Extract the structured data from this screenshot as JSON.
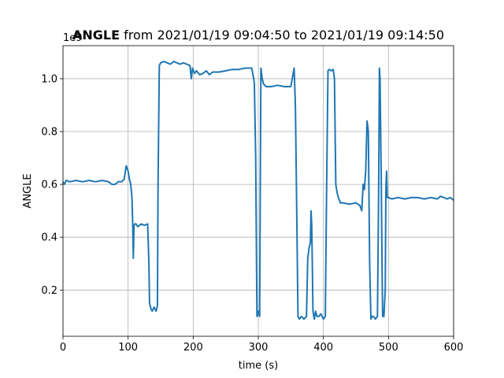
{
  "chart_data": {
    "type": "line",
    "title_bold": "ANGLE",
    "title_rest": " from 2021/01/19 09:04:50 to 2021/01/19 09:14:50",
    "xlabel": "time (s)",
    "ylabel": "ANGLE",
    "offset_label": "1e9",
    "xlim": [
      0,
      600
    ],
    "ylim": [
      0.025,
      1.125
    ],
    "x_ticks": [
      0,
      100,
      200,
      300,
      400,
      500,
      600
    ],
    "x_tick_labels": [
      "0",
      "100",
      "200",
      "300",
      "400",
      "500",
      "600"
    ],
    "y_ticks": [
      0.2,
      0.4,
      0.6,
      0.8,
      1.0
    ],
    "y_tick_labels": [
      "0.2",
      "0.4",
      "0.6",
      "0.8",
      "1.0"
    ],
    "grid": true,
    "line_color": "#1f77b4",
    "series": [
      {
        "x": [
          0,
          2,
          5,
          10,
          20,
          30,
          40,
          50,
          60,
          70,
          75,
          80,
          85,
          90,
          94,
          97,
          100,
          102,
          104,
          106,
          107,
          108,
          109,
          110,
          112,
          115,
          120,
          125,
          130,
          132,
          133,
          135,
          137,
          140,
          143,
          145,
          146,
          148,
          150,
          155,
          160,
          165,
          170,
          175,
          180,
          185,
          190,
          195,
          197,
          199,
          202,
          205,
          210,
          215,
          220,
          225,
          230,
          240,
          250,
          260,
          270,
          280,
          290,
          293,
          294,
          296,
          298,
          300,
          302,
          304,
          306,
          308,
          312,
          320,
          330,
          340,
          350,
          355,
          357,
          359,
          361,
          363,
          366,
          370,
          374,
          376,
          378,
          380,
          381,
          382,
          383,
          384,
          386,
          388,
          390,
          393,
          396,
          400,
          403,
          405,
          407,
          409,
          412,
          415,
          417,
          419,
          421,
          423,
          426,
          430,
          440,
          450,
          456,
          459,
          461,
          463,
          465,
          467,
          469,
          471,
          473,
          475,
          477,
          480,
          483,
          485,
          486,
          487,
          489,
          490,
          491,
          493,
          495,
          496,
          497,
          498,
          500,
          505,
          515,
          525,
          535,
          545,
          555,
          565,
          575,
          580,
          585,
          590,
          595,
          600
        ],
        "y": [
          0.61,
          0.6,
          0.615,
          0.61,
          0.615,
          0.61,
          0.615,
          0.61,
          0.615,
          0.61,
          0.6,
          0.6,
          0.61,
          0.61,
          0.62,
          0.67,
          0.65,
          0.62,
          0.6,
          0.55,
          0.45,
          0.32,
          0.44,
          0.45,
          0.45,
          0.44,
          0.45,
          0.445,
          0.45,
          0.3,
          0.15,
          0.13,
          0.12,
          0.135,
          0.12,
          0.14,
          0.6,
          1.05,
          1.06,
          1.065,
          1.06,
          1.055,
          1.065,
          1.06,
          1.055,
          1.06,
          1.055,
          1.05,
          1.0,
          1.04,
          1.02,
          1.03,
          1.015,
          1.02,
          1.03,
          1.015,
          1.025,
          1.025,
          1.03,
          1.035,
          1.035,
          1.04,
          1.04,
          1.0,
          0.98,
          0.7,
          0.1,
          0.12,
          0.1,
          1.04,
          1.0,
          0.98,
          0.97,
          0.97,
          0.975,
          0.97,
          0.97,
          1.04,
          0.9,
          0.5,
          0.1,
          0.09,
          0.1,
          0.09,
          0.1,
          0.32,
          0.36,
          0.38,
          0.5,
          0.45,
          0.3,
          0.12,
          0.09,
          0.12,
          0.1,
          0.1,
          0.11,
          0.09,
          0.1,
          0.6,
          1.03,
          1.035,
          1.03,
          1.035,
          1.0,
          0.6,
          0.57,
          0.55,
          0.53,
          0.53,
          0.525,
          0.53,
          0.52,
          0.5,
          0.6,
          0.58,
          0.65,
          0.84,
          0.8,
          0.3,
          0.09,
          0.1,
          0.1,
          0.09,
          0.1,
          0.6,
          1.04,
          1.0,
          0.6,
          0.3,
          0.1,
          0.1,
          0.2,
          0.58,
          0.65,
          0.55,
          0.55,
          0.545,
          0.55,
          0.545,
          0.55,
          0.55,
          0.545,
          0.55,
          0.545,
          0.555,
          0.55,
          0.545,
          0.55,
          0.54
        ]
      }
    ]
  }
}
